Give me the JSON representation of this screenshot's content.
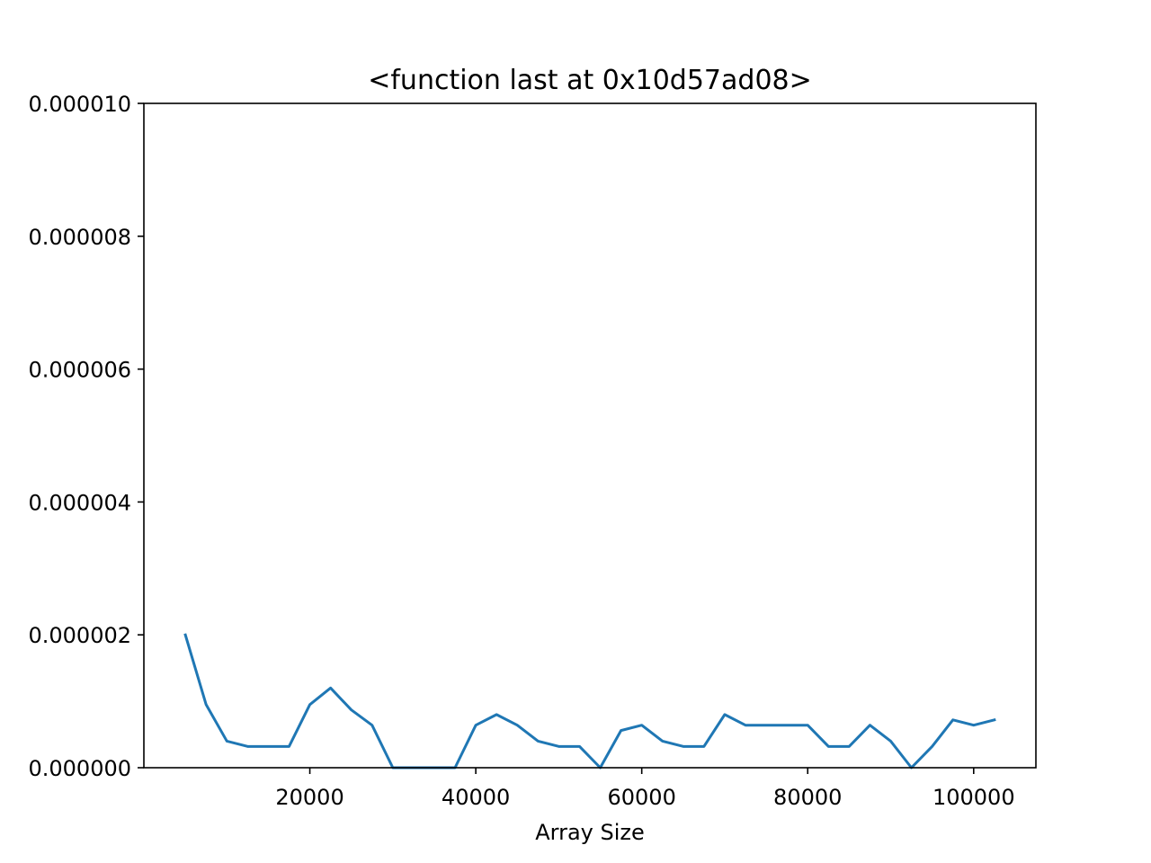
{
  "chart_data": {
    "type": "line",
    "title": "<function last at 0x10d57ad08>",
    "xlabel": "Array Size",
    "ylabel": "",
    "xlim": [
      0,
      107500
    ],
    "ylim": [
      0,
      1e-05
    ],
    "grid": false,
    "legend": "none",
    "xticks": [
      20000,
      40000,
      60000,
      80000,
      100000
    ],
    "xtick_labels": [
      "20000",
      "40000",
      "60000",
      "80000",
      "100000"
    ],
    "yticks": [
      0,
      2e-06,
      4e-06,
      6e-06,
      8e-06,
      1e-05
    ],
    "ytick_labels": [
      "0.000000",
      "0.000002",
      "0.000004",
      "0.000006",
      "0.000008",
      "0.000010"
    ],
    "series": [
      {
        "color": "#1f77b4",
        "x": [
          5000,
          7500,
          10000,
          12500,
          15000,
          17500,
          20000,
          22500,
          25000,
          27500,
          30000,
          32500,
          35000,
          37500,
          40000,
          42500,
          45000,
          47500,
          50000,
          52500,
          55000,
          57500,
          60000,
          62500,
          65000,
          67500,
          70000,
          72500,
          75000,
          77500,
          80000,
          82500,
          85000,
          87500,
          90000,
          92500,
          95000,
          97500,
          100000,
          102500
        ],
        "values": [
          2e-06,
          9.5e-07,
          4e-07,
          3.2e-07,
          3.2e-07,
          3.2e-07,
          9.5e-07,
          1.2e-06,
          8.7e-07,
          6.4e-07,
          0.0,
          0.0,
          0.0,
          0.0,
          6.4e-07,
          8e-07,
          6.4e-07,
          4e-07,
          3.2e-07,
          3.2e-07,
          0.0,
          5.6e-07,
          6.4e-07,
          4e-07,
          3.2e-07,
          3.2e-07,
          8e-07,
          6.4e-07,
          6.4e-07,
          6.4e-07,
          6.4e-07,
          3.2e-07,
          3.2e-07,
          6.4e-07,
          4e-07,
          0.0,
          3.2e-07,
          7.2e-07,
          6.4e-07,
          7.2e-07
        ]
      }
    ]
  }
}
